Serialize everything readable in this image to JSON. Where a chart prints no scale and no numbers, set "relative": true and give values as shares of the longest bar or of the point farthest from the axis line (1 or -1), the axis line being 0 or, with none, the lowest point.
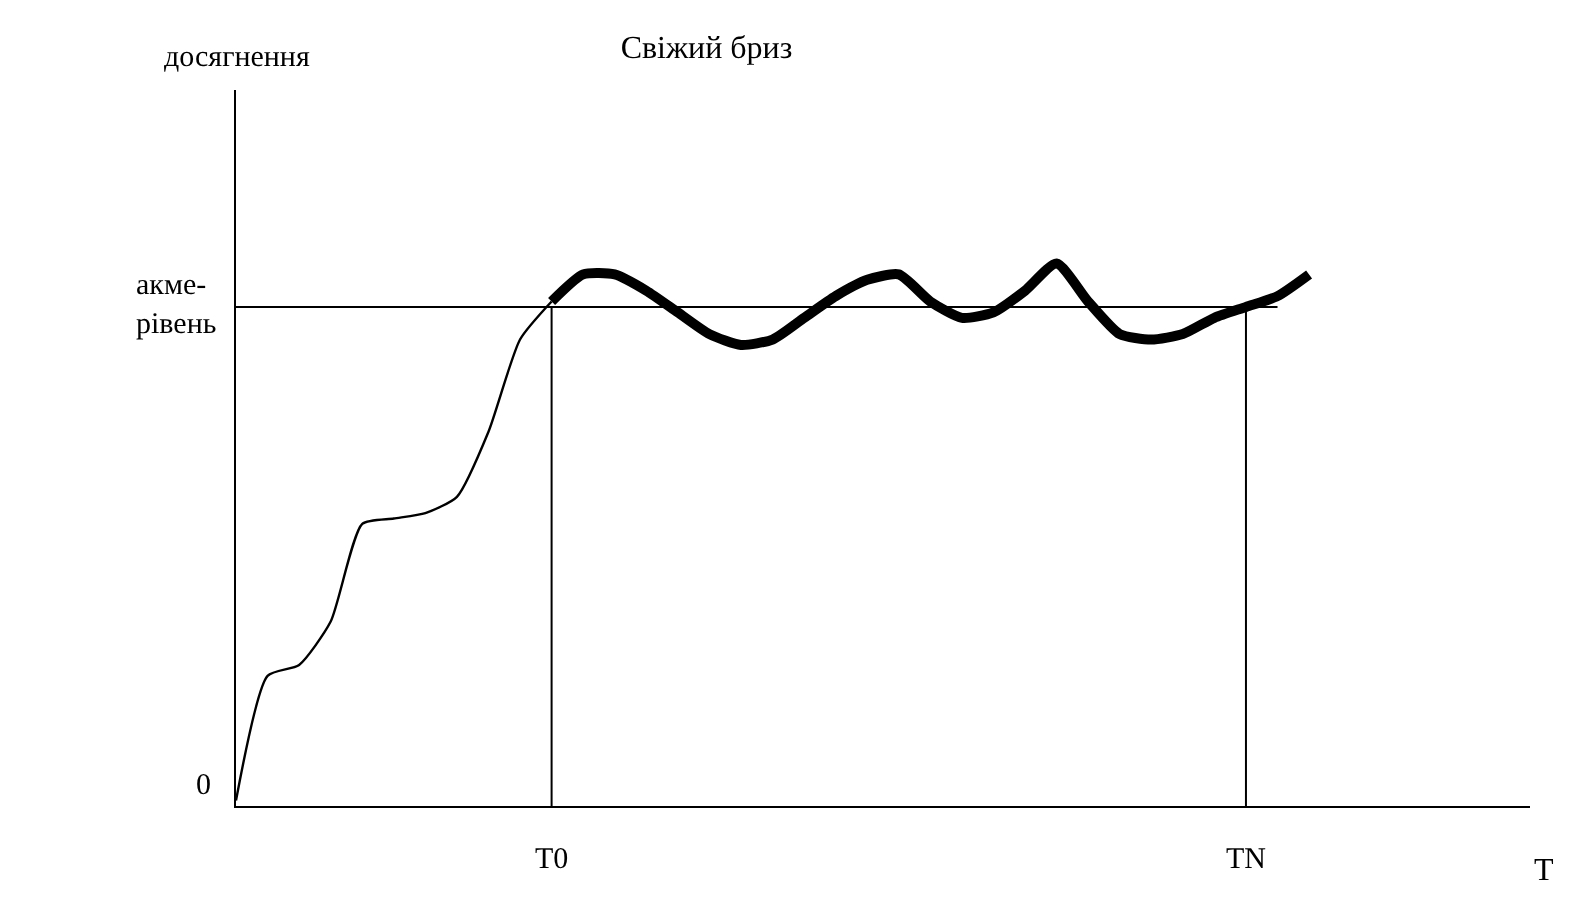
{
  "chart_data": {
    "type": "line",
    "title": "Свіжий бриз",
    "xlabel": "T",
    "relative": true,
    "marker": "none",
    "line_style": "solid",
    "categories": [
      null,
      null,
      null,
      null,
      null,
      null,
      null,
      null,
      null,
      null,
      "T0",
      null,
      null,
      null,
      null,
      null,
      null,
      null,
      null,
      null,
      null,
      null,
      null,
      null,
      null,
      null,
      null,
      null,
      null,
      null,
      null,
      null,
      "TN",
      null,
      null,
      null,
      null,
      null,
      null,
      null,
      null,
      null
    ],
    "series": [
      {
        "color": "#000000",
        "values": [
          0.01,
          0.24,
          0.26,
          0.34,
          0.52,
          0.53,
          0.54,
          0.57,
          0.69,
          0.86,
          0.93,
          null,
          null,
          null,
          null,
          null,
          null,
          null,
          null,
          null,
          null,
          null,
          null,
          null,
          null,
          null,
          null,
          null,
          null,
          null,
          null,
          null,
          null,
          null,
          null,
          null,
          null,
          null,
          null,
          null,
          null,
          null
        ]
      },
      {
        "color": "#000000",
        "values": [
          null,
          null,
          null,
          null,
          null,
          null,
          null,
          null,
          null,
          null,
          0.93,
          0.98,
          0.98,
          0.95,
          0.91,
          0.87,
          0.85,
          0.86,
          0.9,
          0.94,
          0.97,
          0.98,
          0.93,
          0.9,
          0.91,
          0.95,
          1,
          0.93,
          0.87,
          0.86,
          0.87,
          0.9,
          0.92,
          0.94,
          0.98,
          null,
          null,
          null,
          null,
          null,
          null,
          null
        ]
      }
    ],
    "ref_lines": [
      {
        "axis": "y",
        "value": 0.92,
        "label": "акме-рівень"
      },
      {
        "axis": "x",
        "value": "T0"
      },
      {
        "axis": "x",
        "value": "TN"
      }
    ],
    "annotations": [
      "0",
      "досягнення"
    ]
  }
}
